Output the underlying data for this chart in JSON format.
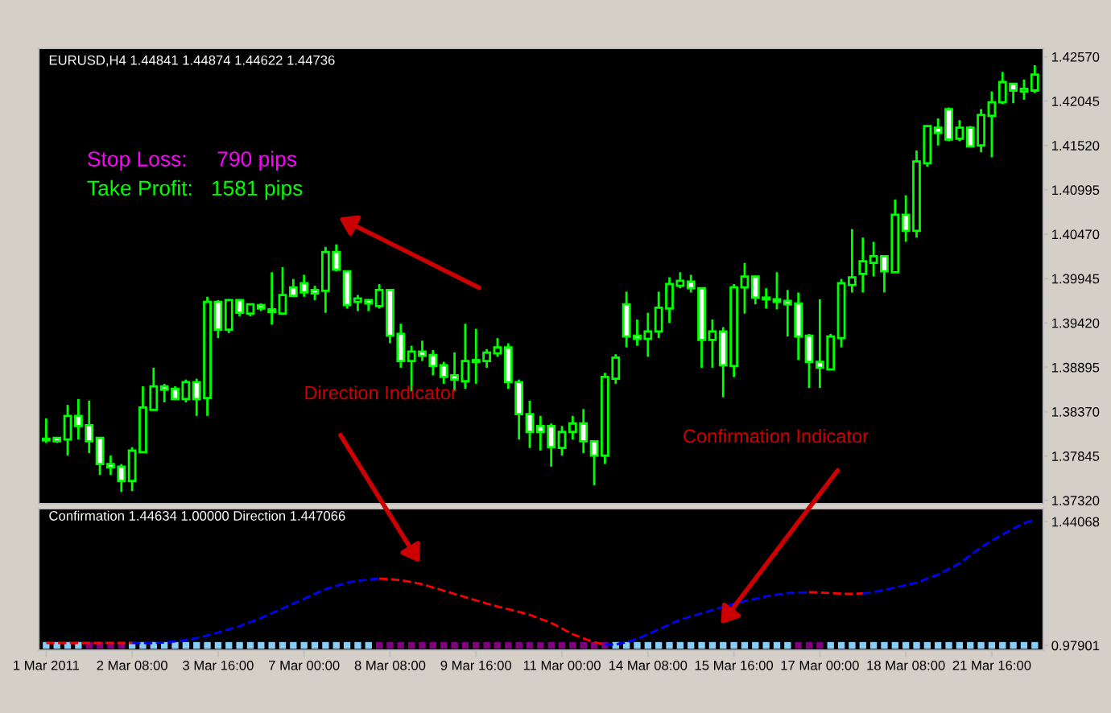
{
  "chart_data": [
    {
      "type": "candlestick",
      "title": "EURUSD,H4 1.44841 1.44874 1.44622 1.44736",
      "annotations": [
        "Stop Loss:     790 pips",
        "Take Profit:   1581 pips",
        "Direction Indicator",
        "Confirmation Indicator"
      ],
      "categories": [
        null,
        null,
        null,
        null,
        null,
        null,
        null,
        null,
        null,
        null,
        null,
        null,
        null,
        null,
        null,
        null,
        null,
        null,
        null,
        null,
        null,
        null,
        null,
        null,
        null,
        null,
        null,
        null,
        null,
        null,
        null,
        null,
        null,
        null,
        null,
        null,
        null,
        null,
        null,
        null,
        null,
        null,
        null,
        null,
        null,
        null,
        null,
        null,
        null,
        null,
        null,
        null,
        null,
        null,
        null,
        null,
        null,
        null,
        null,
        null,
        null,
        null,
        null,
        null,
        null,
        null,
        null,
        null,
        null,
        null,
        null,
        null,
        null,
        null,
        null,
        null,
        null,
        null,
        null,
        null,
        null,
        null,
        null,
        null,
        null,
        null,
        null,
        null,
        null,
        null,
        null,
        null,
        null
      ],
      "ohlc": [
        [
          1.3805,
          1.3829,
          1.38,
          1.3803
        ],
        [
          1.3806,
          1.3807,
          1.38,
          1.3802
        ],
        [
          1.3804,
          1.3845,
          1.3785,
          1.3832
        ],
        [
          1.3832,
          1.3852,
          1.3804,
          1.382
        ],
        [
          1.3821,
          1.385,
          1.3788,
          1.3802
        ],
        [
          1.3806,
          1.3807,
          1.3762,
          1.3775
        ],
        [
          1.3775,
          1.3785,
          1.3762,
          1.3771
        ],
        [
          1.3772,
          1.3775,
          1.3742,
          1.3755
        ],
        [
          1.3755,
          1.3795,
          1.3743,
          1.3791
        ],
        [
          1.3789,
          1.3867,
          1.3789,
          1.3842
        ],
        [
          1.3839,
          1.3889,
          1.3839,
          1.3867
        ],
        [
          1.3867,
          1.387,
          1.3848,
          1.3863
        ],
        [
          1.3864,
          1.3867,
          1.3851,
          1.3852
        ],
        [
          1.3852,
          1.3875,
          1.3848,
          1.3872
        ],
        [
          1.3872,
          1.3876,
          1.3832,
          1.3852
        ],
        [
          1.3853,
          1.3973,
          1.3832,
          1.3967
        ],
        [
          1.3967,
          1.3969,
          1.3924,
          1.3934
        ],
        [
          1.3934,
          1.397,
          1.393,
          1.3969
        ],
        [
          1.3969,
          1.397,
          1.395,
          1.3954
        ],
        [
          1.3953,
          1.3965,
          1.395,
          1.3964
        ],
        [
          1.3963,
          1.3965,
          1.3956,
          1.3959
        ],
        [
          1.3958,
          1.4002,
          1.394,
          1.3955
        ],
        [
          1.3953,
          1.4008,
          1.3953,
          1.3975
        ],
        [
          1.3984,
          1.3994,
          1.3973,
          1.3974
        ],
        [
          1.3989,
          1.3999,
          1.3973,
          1.3978
        ],
        [
          1.3981,
          1.3986,
          1.3969,
          1.3977
        ],
        [
          1.398,
          1.4032,
          1.3954,
          1.4026
        ],
        [
          1.4026,
          1.4035,
          1.4003,
          1.4005
        ],
        [
          1.4003,
          1.4003,
          1.3959,
          1.3963
        ],
        [
          1.3967,
          1.3975,
          1.3956,
          1.3971
        ],
        [
          1.3969,
          1.397,
          1.3956,
          1.3965
        ],
        [
          1.3962,
          1.3988,
          1.3959,
          1.3981
        ],
        [
          1.3981,
          1.3981,
          1.3918,
          1.3927
        ],
        [
          1.3929,
          1.3941,
          1.3889,
          1.3897
        ],
        [
          1.3897,
          1.3915,
          1.3861,
          1.3908
        ],
        [
          1.3908,
          1.3921,
          1.3897,
          1.3903
        ],
        [
          1.3904,
          1.391,
          1.388,
          1.3891
        ],
        [
          1.3892,
          1.3896,
          1.387,
          1.3878
        ],
        [
          1.388,
          1.3907,
          1.3861,
          1.3875
        ],
        [
          1.3873,
          1.3941,
          1.3864,
          1.3897
        ],
        [
          1.3896,
          1.3935,
          1.387,
          1.3898
        ],
        [
          1.3897,
          1.3911,
          1.3889,
          1.3907
        ],
        [
          1.3906,
          1.3924,
          1.3902,
          1.3913
        ],
        [
          1.3913,
          1.3918,
          1.3864,
          1.3872
        ],
        [
          1.3872,
          1.3875,
          1.3804,
          1.3834
        ],
        [
          1.3834,
          1.385,
          1.3794,
          1.3813
        ],
        [
          1.382,
          1.3832,
          1.3791,
          1.3813
        ],
        [
          1.382,
          1.3823,
          1.3772,
          1.3795
        ],
        [
          1.3794,
          1.382,
          1.3785,
          1.3813
        ],
        [
          1.3813,
          1.3832,
          1.3804,
          1.3823
        ],
        [
          1.3823,
          1.384,
          1.3788,
          1.3802
        ],
        [
          1.3802,
          1.3802,
          1.375,
          1.3785
        ],
        [
          1.3785,
          1.3883,
          1.3775,
          1.3878
        ],
        [
          1.3876,
          1.3905,
          1.387,
          1.3901
        ],
        [
          1.3964,
          1.3979,
          1.3913,
          1.3926
        ],
        [
          1.3927,
          1.3946,
          1.3915,
          1.3923
        ],
        [
          1.3923,
          1.3954,
          1.3902,
          1.3932
        ],
        [
          1.3932,
          1.3979,
          1.3924,
          1.396
        ],
        [
          1.3959,
          1.3996,
          1.3942,
          1.3988
        ],
        [
          1.3986,
          1.4002,
          1.3983,
          1.3992
        ],
        [
          1.3991,
          1.3999,
          1.3978,
          1.3983
        ],
        [
          1.3983,
          1.3984,
          1.3889,
          1.3922
        ],
        [
          1.3922,
          1.3946,
          1.3889,
          1.3932
        ],
        [
          1.3932,
          1.3937,
          1.3854,
          1.3892
        ],
        [
          1.3891,
          1.3988,
          1.3878,
          1.3984
        ],
        [
          1.3984,
          1.4013,
          1.3953,
          1.3997
        ],
        [
          1.3997,
          1.3998,
          1.3964,
          1.3972
        ],
        [
          1.3972,
          1.3983,
          1.3959,
          1.397
        ],
        [
          1.397,
          1.4002,
          1.3958,
          1.3967
        ],
        [
          1.3968,
          1.3981,
          1.3926,
          1.3964
        ],
        [
          1.3965,
          1.3978,
          1.3898,
          1.3926
        ],
        [
          1.3927,
          1.3929,
          1.3865,
          1.3896
        ],
        [
          1.3896,
          1.397,
          1.3865,
          1.3889
        ],
        [
          1.3887,
          1.3929,
          1.3886,
          1.3926
        ],
        [
          1.3924,
          1.3994,
          1.3913,
          1.3989
        ],
        [
          1.3987,
          1.4053,
          1.3978,
          1.3996
        ],
        [
          1.4,
          1.4043,
          1.3978,
          1.4015
        ],
        [
          1.4013,
          1.4038,
          1.3997,
          1.4021
        ],
        [
          1.4021,
          1.4022,
          1.3978,
          1.4003
        ],
        [
          1.4002,
          1.4088,
          1.4002,
          1.407
        ],
        [
          1.407,
          1.4093,
          1.4038,
          1.4051
        ],
        [
          1.4051,
          1.4146,
          1.4043,
          1.4133
        ],
        [
          1.4131,
          1.4175,
          1.4127,
          1.4175
        ],
        [
          1.4173,
          1.4184,
          1.4152,
          1.4167
        ],
        [
          1.4195,
          1.4197,
          1.4157,
          1.4159
        ],
        [
          1.416,
          1.4182,
          1.4157,
          1.4173
        ],
        [
          1.4173,
          1.4175,
          1.415,
          1.4151
        ],
        [
          1.4152,
          1.4195,
          1.4144,
          1.4188
        ],
        [
          1.4187,
          1.4216,
          1.4138,
          1.4203
        ],
        [
          1.4203,
          1.4239,
          1.4201,
          1.4227
        ],
        [
          1.4225,
          1.4226,
          1.4202,
          1.4217
        ],
        [
          1.4216,
          1.423,
          1.4206,
          1.4219
        ],
        [
          1.4217,
          1.4247,
          1.4214,
          1.4236
        ]
      ],
      "ylim": [
        1.3728,
        1.4267
      ],
      "yticks": [
        {
          "value": 1.4257,
          "label": "1.42570"
        },
        {
          "value": 1.42045,
          "label": "1.42045"
        },
        {
          "value": 1.4152,
          "label": "1.41520"
        },
        {
          "value": 1.40995,
          "label": "1.40995"
        },
        {
          "value": 1.4047,
          "label": "1.40470"
        },
        {
          "value": 1.39945,
          "label": "1.39945"
        },
        {
          "value": 1.3942,
          "label": "1.39420"
        },
        {
          "value": 1.38895,
          "label": "1.38895"
        },
        {
          "value": 1.3837,
          "label": "1.38370"
        },
        {
          "value": 1.37845,
          "label": "1.37845"
        },
        {
          "value": 1.3732,
          "label": "1.37320"
        }
      ],
      "tick_labels": "y",
      "grid": false,
      "legend": false
    },
    {
      "type": "line",
      "title": "Confirmation 1.44634 1.00000 Direction 1.447066",
      "categories": [
        "1 Mar 2011",
        null,
        null,
        null,
        null,
        null,
        null,
        null,
        "2 Mar 08:00",
        null,
        null,
        null,
        null,
        null,
        null,
        null,
        "3 Mar 16:00",
        null,
        null,
        null,
        null,
        null,
        null,
        null,
        "7 Mar 00:00",
        null,
        null,
        null,
        null,
        null,
        null,
        null,
        "8 Mar 08:00",
        null,
        null,
        null,
        null,
        null,
        null,
        null,
        "9 Mar 16:00",
        null,
        null,
        null,
        null,
        null,
        null,
        null,
        "11 Mar 00:00",
        null,
        null,
        null,
        null,
        null,
        null,
        null,
        "14 Mar 08:00",
        null,
        null,
        null,
        null,
        null,
        null,
        null,
        "15 Mar 16:00",
        null,
        null,
        null,
        null,
        null,
        null,
        null,
        "17 Mar 00:00",
        null,
        null,
        null,
        null,
        null,
        null,
        null,
        "18 Mar 08:00",
        null,
        null,
        null,
        null,
        null,
        null,
        null,
        "21 Mar 16:00",
        null,
        null,
        null,
        null
      ],
      "series": [
        {
          "type": "line",
          "color": "#0000ff",
          "line_style": "dashed",
          "marker": "none",
          "values": [
            null,
            null,
            null,
            null,
            null,
            null,
            null,
            null,
            0.988,
            0.988,
            0.988,
            0.99,
            0.994,
            0.999,
            1.006,
            1.016,
            1.027,
            1.039,
            1.051,
            1.066,
            1.081,
            1.099,
            1.117,
            1.135,
            1.153,
            1.171,
            1.189,
            1.201,
            1.213,
            1.22,
            1.225,
            1.228,
            null,
            null,
            null,
            null,
            null,
            null,
            null,
            null,
            null,
            null,
            null,
            null,
            null,
            null,
            null,
            null,
            null,
            null,
            null,
            null,
            0.982,
            0.982,
            0.991,
            1.003,
            1.021,
            1.039,
            1.057,
            1.075,
            1.087,
            1.099,
            1.111,
            1.123,
            1.134,
            1.144,
            1.153,
            1.162,
            1.168,
            1.174,
            1.176,
            1.177,
            null,
            null,
            null,
            null,
            1.173,
            1.177,
            1.186,
            1.195,
            1.204,
            1.213,
            1.228,
            1.243,
            1.264,
            1.285,
            1.315,
            1.345,
            1.369,
            1.393,
            1.414,
            1.435,
            1.447
          ]
        },
        {
          "type": "line",
          "color": "#ff0000",
          "line_style": "dashed",
          "marker": "none",
          "values": [
            0.988,
            0.988,
            0.988,
            0.988,
            0.988,
            0.988,
            0.988,
            0.988,
            0.988,
            null,
            null,
            null,
            null,
            null,
            null,
            null,
            null,
            null,
            null,
            null,
            null,
            null,
            null,
            null,
            null,
            null,
            null,
            null,
            null,
            null,
            null,
            1.228,
            1.226,
            1.222,
            1.215,
            1.207,
            1.195,
            1.183,
            1.171,
            1.159,
            1.147,
            1.135,
            1.124,
            1.114,
            1.104,
            1.093,
            1.078,
            1.063,
            1.042,
            1.021,
            1.005,
            0.991,
            0.982,
            null,
            null,
            null,
            null,
            null,
            null,
            null,
            null,
            null,
            null,
            null,
            null,
            null,
            null,
            null,
            null,
            null,
            null,
            1.177,
            1.176,
            1.174,
            1.172,
            1.171,
            1.173,
            null,
            null,
            null,
            null,
            null,
            null,
            null,
            null,
            null,
            null,
            null,
            null,
            null,
            null,
            null,
            null
          ]
        },
        {
          "type": "scatter",
          "marker": "square",
          "values": [
            0.97901,
            0.97901,
            0.97901,
            0.97901,
            0.97901,
            0.97901,
            0.97901,
            0.97901,
            0.97901,
            0.97901,
            0.97901,
            0.97901,
            0.97901,
            0.97901,
            0.97901,
            0.97901,
            0.97901,
            0.97901,
            0.97901,
            0.97901,
            0.97901,
            0.97901,
            0.97901,
            0.97901,
            0.97901,
            0.97901,
            0.97901,
            0.97901,
            0.97901,
            0.97901,
            0.97901,
            0.97901,
            0.97901,
            0.97901,
            0.97901,
            0.97901,
            0.97901,
            0.97901,
            0.97901,
            0.97901,
            0.97901,
            0.97901,
            0.97901,
            0.97901,
            0.97901,
            0.97901,
            0.97901,
            0.97901,
            0.97901,
            0.97901,
            0.97901,
            0.97901,
            0.97901,
            0.97901,
            0.97901,
            0.97901,
            0.97901,
            0.97901,
            0.97901,
            0.97901,
            0.97901,
            0.97901,
            0.97901,
            0.97901,
            0.97901,
            0.97901,
            0.97901,
            0.97901,
            0.97901,
            0.97901,
            0.97901,
            0.97901,
            0.97901,
            0.97901,
            0.97901,
            0.97901,
            0.97901,
            0.97901,
            0.97901,
            0.97901,
            0.97901,
            0.97901,
            0.97901,
            0.97901,
            0.97901,
            0.97901,
            0.97901,
            0.97901,
            0.97901,
            0.97901,
            0.97901,
            0.97901,
            0.97901
          ],
          "colors": [
            "#87cefa",
            "#87cefa",
            "#87cefa",
            "#87cefa",
            "#800080",
            "#800080",
            "#800080",
            "#800080",
            "#87cefa",
            "#87cefa",
            "#87cefa",
            "#87cefa",
            "#87cefa",
            "#87cefa",
            "#87cefa",
            "#87cefa",
            "#87cefa",
            "#87cefa",
            "#87cefa",
            "#87cefa",
            "#87cefa",
            "#87cefa",
            "#87cefa",
            "#87cefa",
            "#87cefa",
            "#87cefa",
            "#87cefa",
            "#87cefa",
            "#87cefa",
            "#87cefa",
            "#87cefa",
            "#800080",
            "#800080",
            "#800080",
            "#800080",
            "#800080",
            "#800080",
            "#800080",
            "#800080",
            "#800080",
            "#800080",
            "#800080",
            "#800080",
            "#800080",
            "#800080",
            "#800080",
            "#800080",
            "#800080",
            "#800080",
            "#800080",
            "#800080",
            "#800080",
            "#800080",
            "#87cefa",
            "#87cefa",
            "#87cefa",
            "#87cefa",
            "#87cefa",
            "#87cefa",
            "#87cefa",
            "#87cefa",
            "#87cefa",
            "#87cefa",
            "#87cefa",
            "#87cefa",
            "#87cefa",
            "#87cefa",
            "#87cefa",
            "#87cefa",
            "#87cefa",
            "#800080",
            "#800080",
            "#800080",
            "#87cefa",
            "#87cefa",
            "#87cefa",
            "#87cefa",
            "#87cefa",
            "#87cefa",
            "#87cefa",
            "#87cefa",
            "#87cefa",
            "#87cefa",
            "#87cefa",
            "#87cefa",
            "#87cefa",
            "#87cefa",
            "#87cefa",
            "#87cefa",
            "#87cefa",
            "#87cefa",
            "#87cefa",
            "#87cefa"
          ]
        }
      ],
      "ylim": [
        0.961,
        1.489
      ],
      "yticks": [
        {
          "value": 1.44068,
          "label": "1.44068"
        },
        {
          "value": 0.97901,
          "label": "0.97901"
        }
      ],
      "grid": false,
      "legend": false
    }
  ]
}
